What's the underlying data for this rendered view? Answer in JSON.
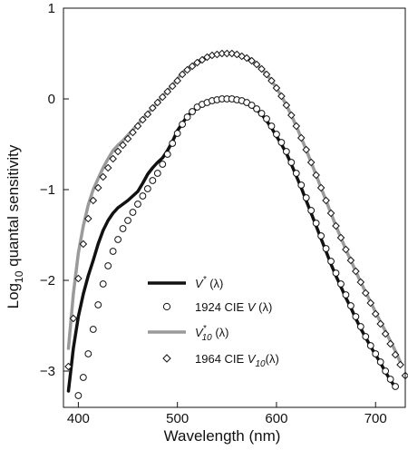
{
  "chart_data": {
    "type": "line",
    "xlabel": "Wavelength (nm)",
    "ylabel": {
      "base": "Log",
      "sub": "10",
      "rest": " quantal sensitivity"
    },
    "xlim": [
      385,
      730
    ],
    "ylim": [
      -3.4,
      1.0
    ],
    "xticks": [
      400,
      500,
      600,
      700
    ],
    "yticks": [
      1,
      0,
      -1,
      -2,
      -3
    ],
    "ytick_labels": [
      "1",
      "0",
      "−1",
      "−2",
      "−3"
    ],
    "legend_position": "bottom-center",
    "colors": {
      "black": "#111111",
      "gray": "#9a9a9a"
    },
    "series": [
      {
        "name_parts": [
          "V",
          "*",
          " (λ)"
        ],
        "style": "line",
        "color": "#111111",
        "x": [
          390,
          395,
          400,
          405,
          410,
          415,
          420,
          425,
          430,
          435,
          440,
          445,
          450,
          455,
          460,
          465,
          470,
          475,
          480,
          485,
          490,
          495,
          500,
          505,
          510,
          515,
          520,
          525,
          530,
          535,
          540,
          545,
          550,
          555,
          560,
          565,
          570,
          575,
          580,
          585,
          590,
          595,
          600,
          605,
          610,
          615,
          620,
          625,
          630,
          635,
          640,
          645,
          650,
          655,
          660,
          665,
          670,
          675,
          680,
          685,
          690,
          695,
          700,
          705,
          710,
          715,
          720
        ],
        "y": [
          -3.22,
          -2.75,
          -2.4,
          -2.15,
          -1.95,
          -1.78,
          -1.6,
          -1.45,
          -1.34,
          -1.26,
          -1.2,
          -1.16,
          -1.12,
          -1.07,
          -1.02,
          -0.93,
          -0.83,
          -0.76,
          -0.7,
          -0.65,
          -0.57,
          -0.47,
          -0.35,
          -0.27,
          -0.19,
          -0.14,
          -0.1,
          -0.07,
          -0.05,
          -0.03,
          -0.02,
          -0.01,
          0.0,
          -0.01,
          -0.02,
          -0.03,
          -0.05,
          -0.08,
          -0.12,
          -0.17,
          -0.24,
          -0.32,
          -0.41,
          -0.5,
          -0.6,
          -0.72,
          -0.85,
          -0.98,
          -1.12,
          -1.26,
          -1.4,
          -1.54,
          -1.68,
          -1.82,
          -1.95,
          -2.07,
          -2.19,
          -2.3,
          -2.42,
          -2.53,
          -2.63,
          -2.73,
          -2.82,
          -2.91,
          -3.01,
          -3.1,
          -3.18
        ]
      },
      {
        "name_parts": [
          "1924 CIE ",
          "V",
          " (λ)"
        ],
        "style": "circles",
        "color": "#111111",
        "x": [
          400,
          405,
          410,
          415,
          420,
          425,
          430,
          435,
          440,
          445,
          450,
          455,
          460,
          465,
          470,
          475,
          480,
          485,
          490,
          495,
          500,
          505,
          510,
          515,
          520,
          525,
          530,
          535,
          540,
          545,
          550,
          555,
          560,
          565,
          570,
          575,
          580,
          585,
          590,
          595,
          600,
          605,
          610,
          615,
          620,
          625,
          630,
          635,
          640,
          645,
          650,
          655,
          660,
          665,
          670,
          675,
          680,
          685,
          690,
          695,
          700,
          705,
          710,
          715,
          720
        ],
        "y": [
          -3.27,
          -3.07,
          -2.81,
          -2.54,
          -2.27,
          -2.04,
          -1.84,
          -1.68,
          -1.55,
          -1.43,
          -1.34,
          -1.25,
          -1.16,
          -1.07,
          -0.99,
          -0.9,
          -0.82,
          -0.72,
          -0.61,
          -0.49,
          -0.38,
          -0.28,
          -0.2,
          -0.14,
          -0.09,
          -0.06,
          -0.04,
          -0.02,
          -0.01,
          0.0,
          0.0,
          0.0,
          -0.01,
          -0.02,
          -0.04,
          -0.07,
          -0.11,
          -0.16,
          -0.22,
          -0.3,
          -0.39,
          -0.48,
          -0.58,
          -0.7,
          -0.82,
          -0.95,
          -1.09,
          -1.23,
          -1.37,
          -1.51,
          -1.65,
          -1.79,
          -1.92,
          -2.04,
          -2.16,
          -2.28,
          -2.4,
          -2.51,
          -2.62,
          -2.72,
          -2.81,
          -2.9,
          -3.0,
          -3.09,
          -3.17
        ]
      },
      {
        "name_parts": [
          "V",
          "*",
          "10",
          " (λ)"
        ],
        "style": "line",
        "color": "#9a9a9a",
        "x": [
          390,
          395,
          400,
          405,
          410,
          415,
          420,
          425,
          430,
          435,
          440,
          445,
          450,
          455,
          460,
          465,
          470,
          475,
          480,
          485,
          490,
          495,
          500,
          505,
          510,
          515,
          520,
          525,
          530,
          535,
          540,
          545,
          550,
          555,
          560,
          565,
          570,
          575,
          580,
          585,
          590,
          595,
          600,
          605,
          610,
          615,
          620,
          625,
          630,
          635,
          640,
          645,
          650,
          655,
          660,
          665,
          670,
          675,
          680,
          685,
          690,
          695,
          700,
          705,
          710,
          715,
          720,
          725
        ],
        "y": [
          -2.75,
          -2.15,
          -1.7,
          -1.4,
          -1.17,
          -1.0,
          -0.88,
          -0.76,
          -0.66,
          -0.57,
          -0.51,
          -0.46,
          -0.4,
          -0.34,
          -0.28,
          -0.22,
          -0.16,
          -0.1,
          -0.04,
          0.03,
          0.09,
          0.15,
          0.22,
          0.29,
          0.33,
          0.37,
          0.4,
          0.43,
          0.46,
          0.48,
          0.49,
          0.5,
          0.5,
          0.5,
          0.49,
          0.47,
          0.45,
          0.42,
          0.38,
          0.33,
          0.27,
          0.2,
          0.12,
          0.03,
          -0.07,
          -0.18,
          -0.3,
          -0.43,
          -0.56,
          -0.7,
          -0.84,
          -0.98,
          -1.12,
          -1.26,
          -1.4,
          -1.53,
          -1.66,
          -1.78,
          -1.9,
          -2.02,
          -2.13,
          -2.24,
          -2.35,
          -2.46,
          -2.56,
          -2.67,
          -2.78,
          -2.9
        ]
      },
      {
        "name_parts": [
          "1964 CIE ",
          "V",
          "10",
          "(λ)"
        ],
        "style": "diamonds",
        "color": "#111111",
        "x": [
          390,
          395,
          400,
          405,
          410,
          415,
          420,
          425,
          430,
          435,
          440,
          445,
          450,
          455,
          460,
          465,
          470,
          475,
          480,
          485,
          490,
          495,
          500,
          505,
          510,
          515,
          520,
          525,
          530,
          535,
          540,
          545,
          550,
          555,
          560,
          565,
          570,
          575,
          580,
          585,
          590,
          595,
          600,
          605,
          610,
          615,
          620,
          625,
          630,
          635,
          640,
          645,
          650,
          655,
          660,
          665,
          670,
          675,
          680,
          685,
          690,
          695,
          700,
          705,
          710,
          715,
          720,
          725,
          730
        ],
        "y": [
          -2.95,
          -2.42,
          -1.98,
          -1.6,
          -1.32,
          -1.12,
          -0.98,
          -0.86,
          -0.76,
          -0.66,
          -0.58,
          -0.51,
          -0.44,
          -0.37,
          -0.3,
          -0.23,
          -0.17,
          -0.1,
          -0.04,
          0.02,
          0.08,
          0.14,
          0.2,
          0.27,
          0.32,
          0.36,
          0.4,
          0.43,
          0.46,
          0.48,
          0.49,
          0.5,
          0.5,
          0.5,
          0.49,
          0.47,
          0.45,
          0.42,
          0.38,
          0.33,
          0.27,
          0.2,
          0.12,
          0.03,
          -0.07,
          -0.18,
          -0.3,
          -0.43,
          -0.56,
          -0.7,
          -0.84,
          -0.98,
          -1.12,
          -1.26,
          -1.4,
          -1.53,
          -1.66,
          -1.78,
          -1.9,
          -2.02,
          -2.14,
          -2.25,
          -2.37,
          -2.48,
          -2.59,
          -2.7,
          -2.82,
          -2.93,
          -3.05
        ]
      }
    ]
  }
}
